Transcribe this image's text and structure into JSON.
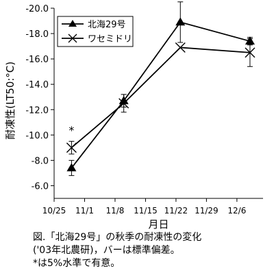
{
  "chart_data": {
    "type": "line",
    "ylabel": "耐凍性(LT50:°C)",
    "xlabel": "月日",
    "x_tick_labels": [
      "10/25",
      "11/1",
      "11/8",
      "11/15",
      "11/22",
      "11/29",
      "12/6"
    ],
    "x_ticks_day_offset": [
      0,
      7,
      14,
      21,
      28,
      35,
      42
    ],
    "x_range_day_offset": [
      0,
      48
    ],
    "y_tick_values": [
      -6,
      -8,
      -10,
      -12,
      -14,
      -16,
      -18,
      -20
    ],
    "y_tick_labels": [
      "-6.0",
      "-8.0",
      "-10.0",
      "-12.0",
      "-14.0",
      "-16.0",
      "-18.0",
      "-20.0"
    ],
    "ylim": [
      -5,
      -20
    ],
    "y_inverted": true,
    "grid": false,
    "legend_position": "top-left",
    "series": [
      {
        "name": "北海29号",
        "marker": "triangle",
        "x_day_offset": [
          4,
          16,
          29,
          45
        ],
        "values": [
          -7.4,
          -12.7,
          -18.9,
          -17.4
        ],
        "error": [
          0.6,
          0.5,
          1.6,
          0.3
        ]
      },
      {
        "name": "ワセミドリ",
        "marker": "x",
        "x_day_offset": [
          4,
          16,
          29,
          45
        ],
        "values": [
          -9.0,
          -12.5,
          -16.9,
          -16.5
        ],
        "error": [
          0.5,
          0.7,
          0.0,
          1.1
        ]
      }
    ],
    "annotations": [
      {
        "text": "*",
        "x_day_offset": 4,
        "y": -10.3
      }
    ]
  },
  "caption": {
    "line1": "図.「北海29号」の秋季の耐凍性の変化",
    "line2": "('03年北農研)，バーは標準偏差。",
    "line3": "*は5%水準で有意。"
  }
}
